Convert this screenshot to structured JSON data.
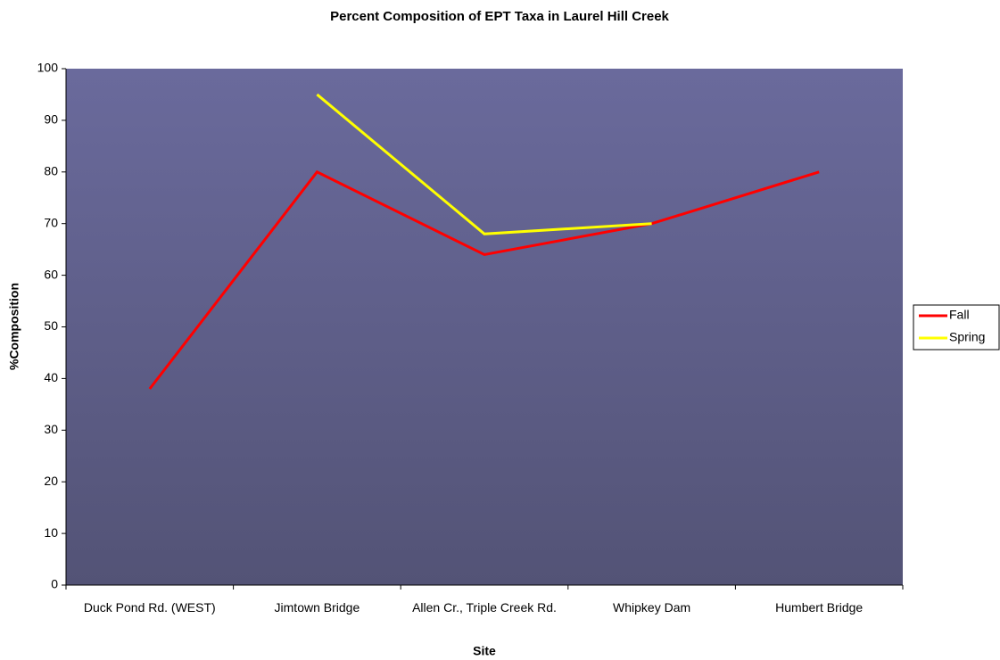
{
  "chart_data": {
    "type": "line",
    "title": "Percent Composition of EPT Taxa in Laurel Hill Creek",
    "x_label": "Site",
    "y_label": "%Composition",
    "categories": [
      "Duck Pond Rd. (WEST)",
      "Jimtown Bridge",
      "Allen Cr., Triple Creek Rd.",
      "Whipkey Dam",
      "Humbert Bridge"
    ],
    "series": [
      {
        "name": "Fall",
        "color": "#ff0000",
        "values": [
          38,
          80,
          64,
          70,
          80
        ]
      },
      {
        "name": "Spring",
        "color": "#ffff00",
        "values": [
          null,
          95,
          68,
          70,
          null
        ]
      }
    ],
    "ylim": [
      0,
      100
    ],
    "yticks": [
      0,
      10,
      20,
      30,
      40,
      50,
      60,
      70,
      80,
      90,
      100
    ],
    "legend": "right"
  }
}
